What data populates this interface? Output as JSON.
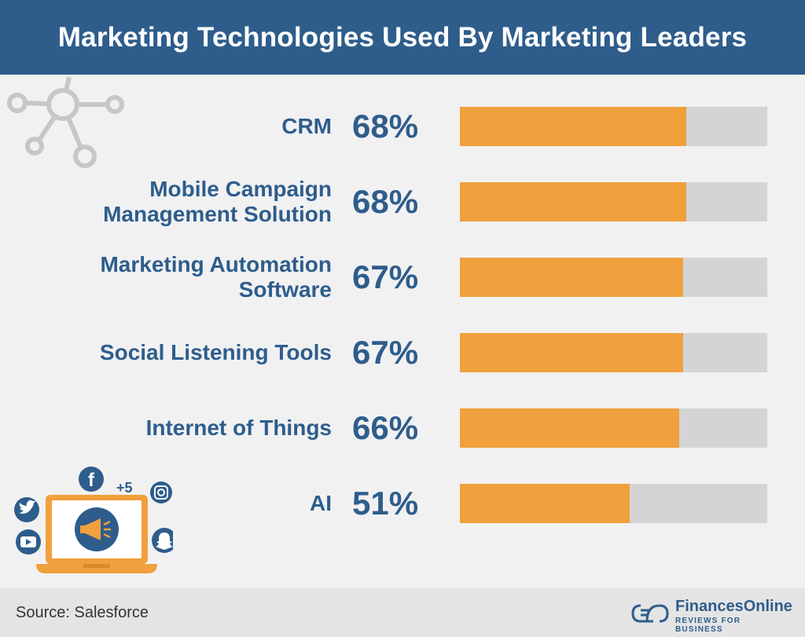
{
  "title": "Marketing Technologies Used By Marketing Leaders",
  "chart_data": {
    "type": "bar",
    "orientation": "horizontal",
    "title": "Marketing Technologies Used By Marketing Leaders",
    "categories": [
      "CRM",
      "Mobile Campaign\nManagement Solution",
      "Marketing Automation\nSoftware",
      "Social Listening Tools",
      "Internet of Things",
      "AI"
    ],
    "values": [
      68,
      68,
      67,
      67,
      66,
      51
    ],
    "value_labels": [
      "68%",
      "68%",
      "67%",
      "67%",
      "66%",
      "51%"
    ],
    "xlim": [
      0,
      100
    ],
    "unit": "%",
    "grid": false,
    "colors": {
      "fill": "#f0a03c",
      "track": "#d4d4d6",
      "text": "#2e5d8c"
    }
  },
  "social": {
    "plus_count": "+5"
  },
  "footer": {
    "source": "Source: Salesforce",
    "brand_name": "FinancesOnline",
    "brand_tagline": "REVIEWS FOR BUSINESS"
  }
}
